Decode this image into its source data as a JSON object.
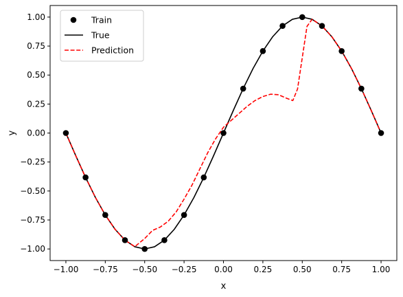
{
  "chart_data": {
    "type": "line",
    "xlabel": "x",
    "ylabel": "y",
    "xlim": [
      -1.1,
      1.1
    ],
    "ylim": [
      -1.1,
      1.1
    ],
    "x_ticks": [
      -1.0,
      -0.75,
      -0.5,
      -0.25,
      0.0,
      0.25,
      0.5,
      0.75,
      1.0
    ],
    "x_tick_labels": [
      "−1.00",
      "−0.75",
      "−0.50",
      "−0.25",
      "0.00",
      "0.25",
      "0.50",
      "0.75",
      "1.00"
    ],
    "y_ticks": [
      -1.0,
      -0.75,
      -0.5,
      -0.25,
      0.0,
      0.25,
      0.5,
      0.75,
      1.0
    ],
    "y_tick_labels": [
      "−1.00",
      "−0.75",
      "−0.50",
      "−0.25",
      "0.00",
      "0.25",
      "0.50",
      "0.75",
      "1.00"
    ],
    "grid": false,
    "legend_position": "top-left",
    "series": [
      {
        "name": "Train",
        "style": "points",
        "color": "#000000",
        "x": [
          -1.0,
          -0.875,
          -0.75,
          -0.625,
          -0.5,
          -0.375,
          -0.25,
          -0.125,
          0.0,
          0.125,
          0.25,
          0.375,
          0.5,
          0.625,
          0.75,
          0.875,
          1.0
        ],
        "y": [
          0.0,
          -0.383,
          -0.707,
          -0.924,
          -1.0,
          -0.924,
          -0.707,
          -0.383,
          0.0,
          0.383,
          0.707,
          0.924,
          1.0,
          0.924,
          0.707,
          0.383,
          0.0
        ]
      },
      {
        "name": "True",
        "style": "solid",
        "color": "#000000",
        "x": [
          -1.0,
          -0.9375,
          -0.875,
          -0.8125,
          -0.75,
          -0.6875,
          -0.625,
          -0.5625,
          -0.5,
          -0.4375,
          -0.375,
          -0.3125,
          -0.25,
          -0.1875,
          -0.125,
          -0.0625,
          0.0,
          0.0625,
          0.125,
          0.1875,
          0.25,
          0.3125,
          0.375,
          0.4375,
          0.5,
          0.5625,
          0.625,
          0.6875,
          0.75,
          0.8125,
          0.875,
          0.9375,
          1.0
        ],
        "y": [
          0.0,
          -0.195,
          -0.383,
          -0.556,
          -0.707,
          -0.831,
          -0.924,
          -0.981,
          -1.0,
          -0.981,
          -0.924,
          -0.831,
          -0.707,
          -0.556,
          -0.383,
          -0.195,
          0.0,
          0.195,
          0.383,
          0.556,
          0.707,
          0.831,
          0.924,
          0.981,
          1.0,
          0.981,
          0.924,
          0.831,
          0.707,
          0.556,
          0.383,
          0.195,
          0.0
        ]
      },
      {
        "name": "Prediction",
        "style": "dashed",
        "color": "#ff0000",
        "x": [
          -1.0,
          -0.9375,
          -0.875,
          -0.8125,
          -0.75,
          -0.6875,
          -0.625,
          -0.5625,
          -0.5,
          -0.45,
          -0.4,
          -0.35,
          -0.3,
          -0.25,
          -0.2,
          -0.15,
          -0.1,
          -0.05,
          0.0,
          0.05,
          0.1,
          0.15,
          0.2,
          0.25,
          0.3,
          0.35,
          0.4,
          0.44,
          0.47,
          0.5,
          0.53,
          0.5625,
          0.625,
          0.6875,
          0.75,
          0.8125,
          0.875,
          0.9375,
          1.0
        ],
        "y": [
          0.0,
          -0.195,
          -0.383,
          -0.556,
          -0.707,
          -0.831,
          -0.924,
          -0.98,
          -0.91,
          -0.84,
          -0.81,
          -0.76,
          -0.68,
          -0.57,
          -0.45,
          -0.31,
          -0.17,
          -0.05,
          0.05,
          0.11,
          0.17,
          0.23,
          0.28,
          0.315,
          0.335,
          0.33,
          0.3,
          0.28,
          0.38,
          0.65,
          0.92,
          0.981,
          0.924,
          0.831,
          0.707,
          0.556,
          0.383,
          0.195,
          0.0
        ]
      }
    ]
  }
}
